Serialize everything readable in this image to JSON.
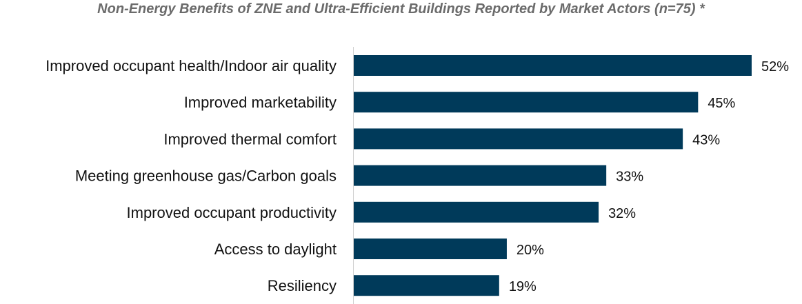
{
  "chart_data": {
    "type": "bar",
    "orientation": "horizontal",
    "title": "Non-Energy Benefits of ZNE and Ultra-Efficient Buildings Reported by Market Actors (n=75) *",
    "categories": [
      "Improved occupant health/Indoor air quality",
      "Improved marketability",
      "Improved thermal comfort",
      "Meeting greenhouse gas/Carbon goals",
      "Improved occupant productivity",
      "Access to daylight",
      "Resiliency"
    ],
    "values": [
      52,
      45,
      43,
      33,
      32,
      20,
      19
    ],
    "value_labels": [
      "52%",
      "45%",
      "43%",
      "33%",
      "32%",
      "20%",
      "19%"
    ],
    "unit": "%",
    "xlim": [
      0,
      52
    ],
    "grid": false,
    "bar_color": "#003a5a"
  }
}
